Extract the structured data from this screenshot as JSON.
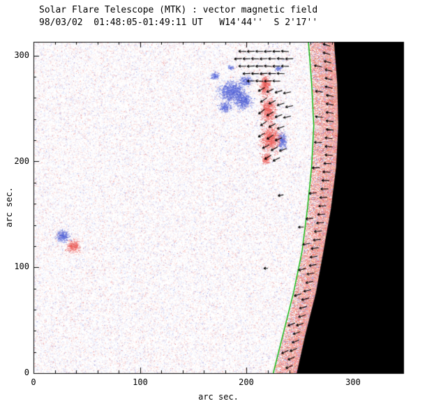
{
  "chart_data": {
    "type": "heatmap",
    "title": "Solar Flare Telescope (MTK) : vector magnetic field",
    "subtitle": "98/03/02  01:48:05-01:49:11 UT   W14'44''  S 2'17''",
    "xlabel": "arc sec.",
    "ylabel": "arc sec.",
    "xlim": [
      0,
      347
    ],
    "ylim": [
      0,
      313
    ],
    "x_ticks": [
      "0",
      "100",
      "200",
      "300"
    ],
    "x_tick_values": [
      0,
      100,
      200,
      300
    ],
    "y_ticks": [
      "0",
      "100",
      "200",
      "300"
    ],
    "y_tick_values": [
      0,
      100,
      200,
      300
    ],
    "minor_tick_step": 20,
    "legend": "none",
    "grid": false,
    "colors": {
      "noise_red": "#e03c3c",
      "noise_blue": "#5060dc",
      "patch_red": "#ee605c",
      "patch_blue": "#5868da",
      "limb_band_salmon": "#ee6e5a",
      "limb_line_green": "#00b400",
      "off_limb_black": "#000000",
      "axis": "#000000",
      "vectors": "#000000"
    },
    "noise": {
      "count": 85000
    },
    "blue_patches": [
      [
        186,
        266,
        11,
        9
      ],
      [
        197,
        257,
        7,
        7
      ],
      [
        179,
        251,
        5,
        4
      ],
      [
        199,
        276,
        5,
        4
      ],
      [
        170,
        281,
        4,
        3
      ],
      [
        185,
        289,
        3,
        2
      ],
      [
        233,
        220,
        4,
        7
      ],
      [
        229,
        288,
        3,
        2
      ],
      [
        27,
        130,
        6,
        5
      ]
    ],
    "red_patches": [
      [
        217,
        272,
        5,
        9
      ],
      [
        220,
        248,
        6,
        11
      ],
      [
        222,
        222,
        8,
        11
      ],
      [
        218,
        203,
        4,
        5
      ],
      [
        37,
        120,
        6,
        5
      ]
    ],
    "limb_green_line": [
      [
        225,
        0
      ],
      [
        234,
        36
      ],
      [
        244,
        76
      ],
      [
        252,
        115
      ],
      [
        257,
        155
      ],
      [
        261,
        195
      ],
      [
        263,
        234
      ],
      [
        261,
        274
      ],
      [
        258,
        313
      ]
    ],
    "black_edge": [
      [
        247,
        0
      ],
      [
        255,
        36
      ],
      [
        265,
        76
      ],
      [
        272,
        115
      ],
      [
        279,
        155
      ],
      [
        284,
        195
      ],
      [
        286,
        234
      ],
      [
        285,
        274
      ],
      [
        282,
        313
      ]
    ],
    "arrows": [
      [
        196,
        304,
        178
      ],
      [
        204,
        304,
        182
      ],
      [
        212,
        304,
        179
      ],
      [
        220,
        304,
        183
      ],
      [
        228,
        304,
        180
      ],
      [
        236,
        304,
        177
      ],
      [
        192,
        297,
        184
      ],
      [
        200,
        297,
        181
      ],
      [
        208,
        297,
        178
      ],
      [
        216,
        297,
        183
      ],
      [
        224,
        297,
        180
      ],
      [
        232,
        297,
        176
      ],
      [
        240,
        297,
        182
      ],
      [
        196,
        290,
        179
      ],
      [
        204,
        290,
        183
      ],
      [
        212,
        290,
        180
      ],
      [
        220,
        290,
        177
      ],
      [
        228,
        290,
        181
      ],
      [
        236,
        290,
        178
      ],
      [
        200,
        283,
        182
      ],
      [
        208,
        283,
        179
      ],
      [
        216,
        283,
        184
      ],
      [
        224,
        283,
        180
      ],
      [
        232,
        283,
        177
      ],
      [
        204,
        276,
        181
      ],
      [
        212,
        276,
        178
      ],
      [
        220,
        276,
        183
      ],
      [
        228,
        276,
        179
      ],
      [
        214,
        268,
        210
      ],
      [
        222,
        267,
        205
      ],
      [
        230,
        266,
        198
      ],
      [
        238,
        265,
        192
      ],
      [
        216,
        258,
        214
      ],
      [
        224,
        256,
        206
      ],
      [
        232,
        254,
        198
      ],
      [
        240,
        252,
        192
      ],
      [
        214,
        247,
        218
      ],
      [
        222,
        245,
        210
      ],
      [
        230,
        243,
        200
      ],
      [
        238,
        242,
        194
      ],
      [
        216,
        236,
        216
      ],
      [
        224,
        234,
        208
      ],
      [
        232,
        232,
        200
      ],
      [
        214,
        225,
        212
      ],
      [
        222,
        223,
        214
      ],
      [
        230,
        221,
        202
      ],
      [
        218,
        214,
        208
      ],
      [
        226,
        212,
        210
      ],
      [
        234,
        211,
        200
      ],
      [
        220,
        204,
        212
      ],
      [
        228,
        202,
        206
      ],
      [
        240,
        6,
        204
      ],
      [
        242,
        14,
        203
      ],
      [
        244,
        22,
        202
      ],
      [
        246,
        30,
        201
      ],
      [
        247,
        38,
        200
      ],
      [
        250,
        46,
        198
      ],
      [
        252,
        54,
        197
      ],
      [
        253,
        62,
        196
      ],
      [
        255,
        70,
        195
      ],
      [
        257,
        78,
        194
      ],
      [
        259,
        86,
        193
      ],
      [
        260,
        94,
        192
      ],
      [
        262,
        102,
        191
      ],
      [
        263,
        110,
        189
      ],
      [
        264,
        118,
        188
      ],
      [
        266,
        126,
        187
      ],
      [
        267,
        134,
        186
      ],
      [
        269,
        142,
        185
      ],
      [
        270,
        150,
        184
      ],
      [
        271,
        158,
        183
      ],
      [
        272,
        166,
        182
      ],
      [
        273,
        174,
        181
      ],
      [
        274,
        182,
        179
      ],
      [
        275,
        190,
        178
      ],
      [
        276,
        198,
        177
      ],
      [
        277,
        206,
        176
      ],
      [
        277,
        214,
        175
      ],
      [
        277,
        222,
        174
      ],
      [
        278,
        230,
        173
      ],
      [
        278,
        238,
        172
      ],
      [
        278,
        246,
        171
      ],
      [
        278,
        254,
        169
      ],
      [
        278,
        262,
        168
      ],
      [
        277,
        270,
        167
      ],
      [
        277,
        278,
        166
      ],
      [
        277,
        286,
        165
      ],
      [
        276,
        294,
        164
      ],
      [
        275,
        302,
        163
      ],
      [
        275,
        310,
        162
      ],
      [
        236,
        20,
        205
      ],
      [
        242,
        46,
        202
      ],
      [
        248,
        74,
        198
      ],
      [
        252,
        98,
        195
      ],
      [
        256,
        122,
        192
      ],
      [
        259,
        146,
        188
      ],
      [
        262,
        170,
        185
      ],
      [
        265,
        194,
        182
      ],
      [
        267,
        218,
        178
      ],
      [
        268,
        242,
        175
      ],
      [
        268,
        266,
        172
      ],
      [
        267,
        290,
        168
      ],
      [
        218,
        99,
        180,
        6
      ],
      [
        251,
        138,
        182,
        8
      ],
      [
        232,
        168,
        190,
        8
      ]
    ]
  }
}
